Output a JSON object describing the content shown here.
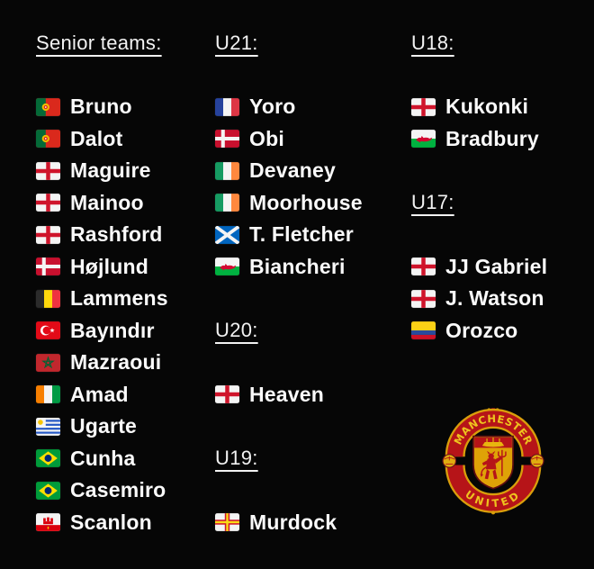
{
  "page": {
    "background": "#060606",
    "text_color": "#fafafa"
  },
  "columns": [
    {
      "sections": [
        {
          "title": "Senior teams:",
          "players": [
            {
              "flag": "portugal",
              "name": "Bruno"
            },
            {
              "flag": "portugal",
              "name": "Dalot"
            },
            {
              "flag": "england",
              "name": "Maguire"
            },
            {
              "flag": "england",
              "name": "Mainoo"
            },
            {
              "flag": "england",
              "name": "Rashford"
            },
            {
              "flag": "denmark",
              "name": "Højlund"
            },
            {
              "flag": "belgium",
              "name": "Lammens"
            },
            {
              "flag": "turkey",
              "name": "Bayındır"
            },
            {
              "flag": "morocco",
              "name": "Mazraoui"
            },
            {
              "flag": "ivory-coast",
              "name": "Amad"
            },
            {
              "flag": "uruguay",
              "name": "Ugarte"
            },
            {
              "flag": "brazil",
              "name": "Cunha"
            },
            {
              "flag": "brazil",
              "name": "Casemiro"
            },
            {
              "flag": "gibraltar",
              "name": "Scanlon"
            }
          ]
        }
      ]
    },
    {
      "sections": [
        {
          "title": "U21:",
          "players": [
            {
              "flag": "france",
              "name": "Yoro"
            },
            {
              "flag": "denmark",
              "name": "Obi"
            },
            {
              "flag": "ireland",
              "name": "Devaney"
            },
            {
              "flag": "ireland",
              "name": "Moorhouse"
            },
            {
              "flag": "scotland",
              "name": "T. Fletcher"
            },
            {
              "flag": "wales",
              "name": "Biancheri"
            }
          ]
        },
        {
          "title": "U20:",
          "players": [
            {
              "flag": "england",
              "name": "Heaven"
            }
          ]
        },
        {
          "title": "U19:",
          "players": [
            {
              "flag": "guernsey",
              "name": "Murdock"
            }
          ]
        }
      ]
    },
    {
      "sections": [
        {
          "title": "U18:",
          "players": [
            {
              "flag": "england",
              "name": "Kukonki"
            },
            {
              "flag": "wales",
              "name": "Bradbury"
            }
          ]
        },
        {
          "title": "U17:",
          "players": [
            {
              "flag": "england",
              "name": "JJ Gabriel"
            },
            {
              "flag": "england",
              "name": "J. Watson"
            },
            {
              "flag": "colombia",
              "name": "Orozco"
            }
          ]
        }
      ]
    }
  ],
  "crest": {
    "top_text": "MANCHESTER",
    "bottom_text": "UNITED",
    "ribbon_red": "#b61418",
    "gold": "#d99e0b",
    "text_gold": "#eec31e",
    "shield_gold": "#dfa207",
    "devil_red": "#b61418"
  }
}
